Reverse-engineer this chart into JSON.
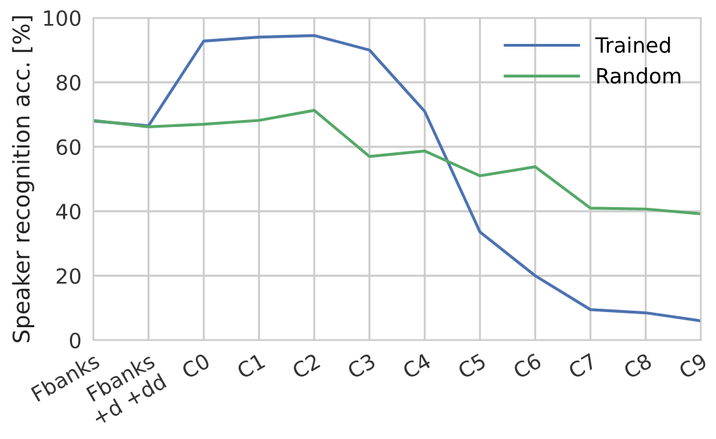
{
  "chart_data": {
    "type": "line",
    "ylabel": "Speaker recognition acc. [%]",
    "categories": [
      "Fbanks",
      "Fbanks\n+d +dd",
      "C0",
      "C1",
      "C2",
      "C3",
      "C4",
      "C5",
      "C6",
      "C7",
      "C8",
      "C9"
    ],
    "series": [
      {
        "name": "Trained",
        "color": "#4c72b0",
        "values": [
          68,
          66.5,
          92.8,
          94,
          94.5,
          90,
          71,
          33.6,
          20,
          9.5,
          8.5,
          6
        ]
      },
      {
        "name": "Random",
        "color": "#55a868",
        "values": [
          68.2,
          66.2,
          67,
          68.2,
          71.3,
          57,
          58.7,
          51,
          53.8,
          41,
          40.7,
          39.2
        ]
      }
    ],
    "ylim": [
      0,
      100
    ],
    "yticks": [
      0,
      20,
      40,
      60,
      80,
      100
    ],
    "grid": true,
    "legend": "top right",
    "marker": "none",
    "line_style": "solid"
  }
}
